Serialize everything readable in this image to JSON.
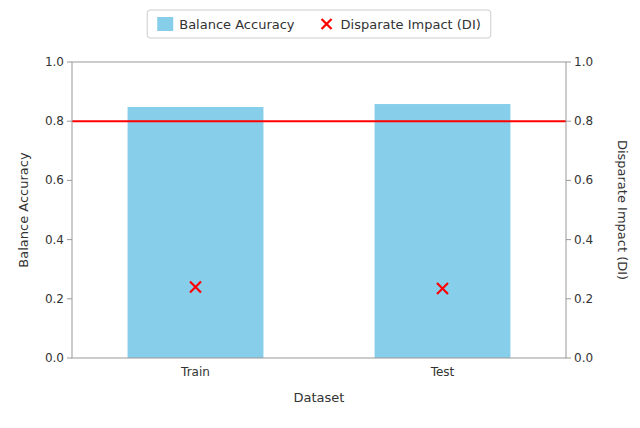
{
  "chart_data": {
    "type": "bar",
    "categories": [
      "Train",
      "Test"
    ],
    "xlabel": "Dataset",
    "ylabel": "Balance Accuracy",
    "y2label": "Disparate Impact (DI)",
    "series": [
      {
        "name": "Balance Accuracy",
        "type": "bar",
        "color": "#87CEEB",
        "values": [
          0.848,
          0.858
        ]
      },
      {
        "name": "Disparate Impact (DI)",
        "type": "scatter",
        "marker": "x",
        "color": "red",
        "axis": "y2",
        "values": [
          0.24,
          0.235
        ],
        "hline": 0.8
      }
    ],
    "ylim": [
      0.0,
      1.0
    ],
    "yticks": [
      {
        "value": 0.0,
        "label": "0.0"
      },
      0.2,
      0.4,
      0.6,
      0.8,
      {
        "value": 1.0,
        "label": "1.0"
      }
    ],
    "y2lim": [
      0.0,
      1.0
    ],
    "y2ticks": [
      {
        "value": 0.0,
        "label": "0.0"
      },
      0.2,
      0.4,
      0.6,
      0.8,
      {
        "value": 1.0,
        "label": "1.0"
      }
    ],
    "grid": false,
    "legend": "top"
  }
}
